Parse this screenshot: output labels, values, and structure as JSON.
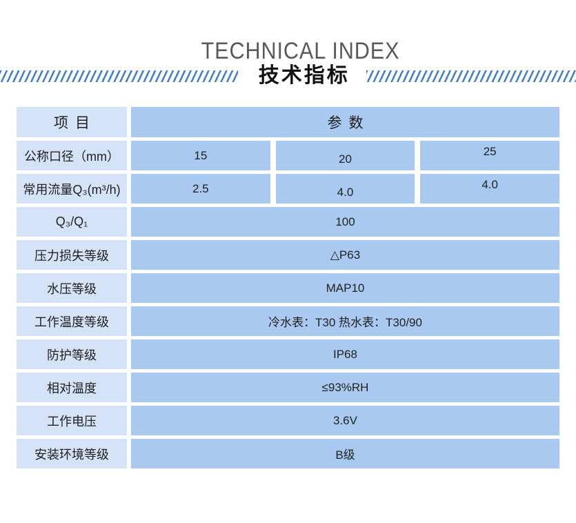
{
  "header": {
    "title_en": "TECHNICAL INDEX",
    "title_zh": "技术指标",
    "stripe_color": "#3f7ec8"
  },
  "table": {
    "columns": {
      "item": "项目",
      "params": "参数"
    },
    "colors": {
      "label_cell": "#d5e3f8",
      "value_cell": "#a9c9f0"
    },
    "rows": [
      {
        "label": "公称口径（mm）",
        "cells": [
          "15",
          "20",
          "25"
        ]
      },
      {
        "label": "常用流量Q₃(m³/h)",
        "cells": [
          "2.5",
          "4.0",
          "4.0"
        ]
      },
      {
        "label": "Q₃/Q₁",
        "value": "100"
      },
      {
        "label": "压力损失等级",
        "value": "△P63"
      },
      {
        "label": "水压等级",
        "value": "MAP10"
      },
      {
        "label": "工作温度等级",
        "value": "冷水表：T30 热水表：T30/90"
      },
      {
        "label": "防护等级",
        "value": "IP68"
      },
      {
        "label": "相对温度",
        "value": "≤93%RH"
      },
      {
        "label": "工作电压",
        "value": "3.6V"
      },
      {
        "label": "安装环境等级",
        "value": "B级"
      }
    ]
  }
}
